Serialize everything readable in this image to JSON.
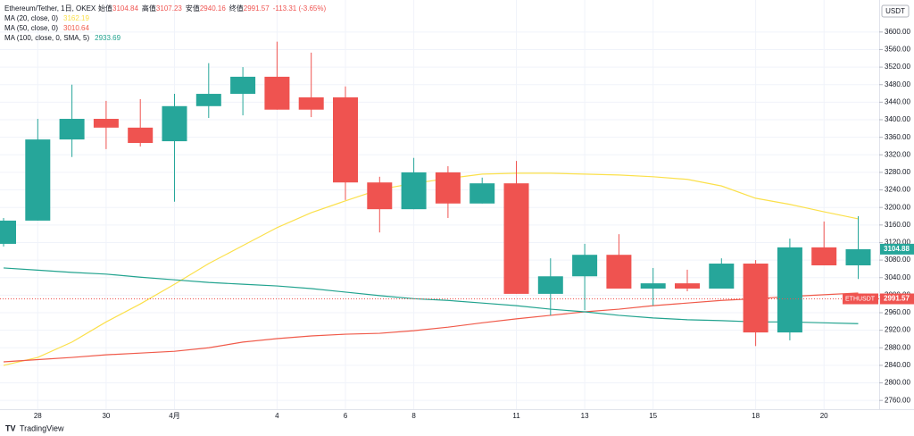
{
  "chart_data": {
    "type": "candlestick",
    "title": "Ethereum/Tether, 1日, OKEX",
    "ohlc_legend": [
      {
        "label": "始值",
        "value": 3104.84
      },
      {
        "label": "高值",
        "value": 3107.23
      },
      {
        "label": "安值",
        "value": 2940.16
      },
      {
        "label": "终值",
        "value": 2991.57
      }
    ],
    "change": "-113.31 (-3.65%)",
    "currency": "USDT",
    "watermark": "TradingView",
    "categories": [
      null,
      "28",
      null,
      "30",
      null,
      "4月",
      null,
      null,
      "4",
      null,
      "6",
      null,
      "8",
      null,
      null,
      "11",
      null,
      "13",
      null,
      "15",
      null,
      null,
      "18",
      null,
      "20",
      null
    ],
    "open": [
      3117,
      3170,
      3355,
      3402,
      3382,
      3351,
      3431,
      3459,
      3498,
      3451,
      3451,
      3257,
      3196,
      3280,
      3209,
      3255,
      3003,
      3043,
      3092,
      3015,
      3027,
      3015,
      3072,
      2915,
      3109,
      3068
    ],
    "high": [
      3176,
      3402,
      3480,
      3443,
      3447,
      3459,
      3529,
      3520,
      3578,
      3553,
      3476,
      3270,
      3313,
      3294,
      3268,
      3306,
      3084,
      3117,
      3139,
      3062,
      3058,
      3084,
      3080,
      3129,
      3168,
      3180
    ],
    "low": [
      3111,
      3170,
      3315,
      3333,
      3339,
      3213,
      3404,
      3410,
      3423,
      3406,
      3217,
      3143,
      3196,
      3176,
      3209,
      3003,
      2954,
      2966,
      3015,
      2976,
      3009,
      3015,
      2884,
      2897,
      3068,
      3037
    ],
    "close": [
      3170,
      3355,
      3402,
      3382,
      3347,
      3431,
      3459,
      3498,
      3423,
      3423,
      3257,
      3196,
      3280,
      3209,
      3255,
      3003,
      3043,
      3092,
      3015,
      3027,
      3015,
      3072,
      2915,
      3109,
      3068,
      3104.84
    ],
    "up_color": "#26a69a",
    "down_color": "#ef5350",
    "series": [
      {
        "name": "MA (20, close, 0)",
        "last_value": 3162.19,
        "color": "#fbe04b",
        "values": [
          2840,
          2858,
          2893,
          2939,
          2980,
          3025,
          3072,
          3113,
          3154,
          3188,
          3215,
          3241,
          3255,
          3266,
          3276,
          3278,
          3278,
          3276,
          3274,
          3270,
          3264,
          3249,
          3221,
          3207,
          3190,
          3174
        ]
      },
      {
        "name": "MA (50, close, 0)",
        "last_value": 3010.64,
        "color": "#f05a4a",
        "values": [
          2848,
          2853,
          2858,
          2864,
          2868,
          2872,
          2880,
          2893,
          2901,
          2907,
          2911,
          2913,
          2919,
          2927,
          2937,
          2946,
          2954,
          2962,
          2968,
          2976,
          2982,
          2988,
          2992,
          2997,
          3001,
          3005
        ]
      },
      {
        "name": "MA (100, close, 0, SMA, 5)",
        "last_value": 2933.69,
        "color": "#22a38f",
        "values": [
          3062,
          3057,
          3052,
          3048,
          3041,
          3035,
          3029,
          3025,
          3021,
          3015,
          3007,
          2999,
          2992,
          2988,
          2982,
          2976,
          2968,
          2962,
          2954,
          2948,
          2944,
          2942,
          2939,
          2939,
          2937,
          2935
        ]
      }
    ],
    "price_labels": [
      {
        "label": "3104.88",
        "value": 3104.88,
        "color": "#26a69a"
      },
      {
        "label": "ETHUSDT",
        "value": 2991.57,
        "color": "#ef5350"
      }
    ],
    "ylim": [
      2740,
      3673
    ],
    "yticks": [
      {
        "value": 2760,
        "label": "2760.00"
      },
      {
        "value": 2800,
        "label": "2800.00"
      },
      {
        "value": 2840,
        "label": "2840.00"
      },
      {
        "value": 2880,
        "label": "2880.00"
      },
      {
        "value": 2920,
        "label": "2920.00"
      },
      {
        "value": 2960,
        "label": "2960.00"
      },
      {
        "value": 3000,
        "label": "3000.00"
      },
      {
        "value": 3040,
        "label": "3040.00"
      },
      {
        "value": 3080,
        "label": "3080.00"
      },
      {
        "value": 3120,
        "label": "3120.00"
      },
      {
        "value": 3160,
        "label": "3160.00"
      },
      {
        "value": 3200,
        "label": "3200.00"
      },
      {
        "value": 3240,
        "label": "3240.00"
      },
      {
        "value": 3280,
        "label": "3280.00"
      },
      {
        "value": 3320,
        "label": "3320.00"
      },
      {
        "value": 3360,
        "label": "3360.00"
      },
      {
        "value": 3400,
        "label": "3400.00"
      },
      {
        "value": 3440,
        "label": "3440.00"
      },
      {
        "value": 3480,
        "label": "3480.00"
      },
      {
        "value": 3520,
        "label": "3520.00"
      },
      {
        "value": 3560,
        "label": "3560.00"
      },
      {
        "value": 3600,
        "label": "3600.00"
      }
    ],
    "grid": true
  }
}
